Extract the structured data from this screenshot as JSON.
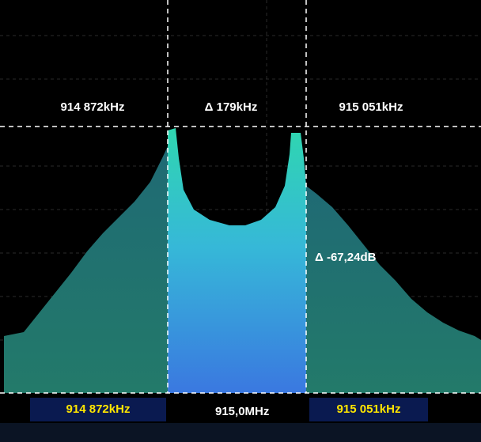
{
  "markers": {
    "left_freq": "914 872kHz",
    "delta_freq": "Δ 179kHz",
    "right_freq": "915 051kHz",
    "delta_level": "Δ -67,24dB"
  },
  "status_bar": {
    "left_freq": "914 872kHz",
    "center_freq": "915,0MHz",
    "right_freq": "915 051kHz"
  }
}
